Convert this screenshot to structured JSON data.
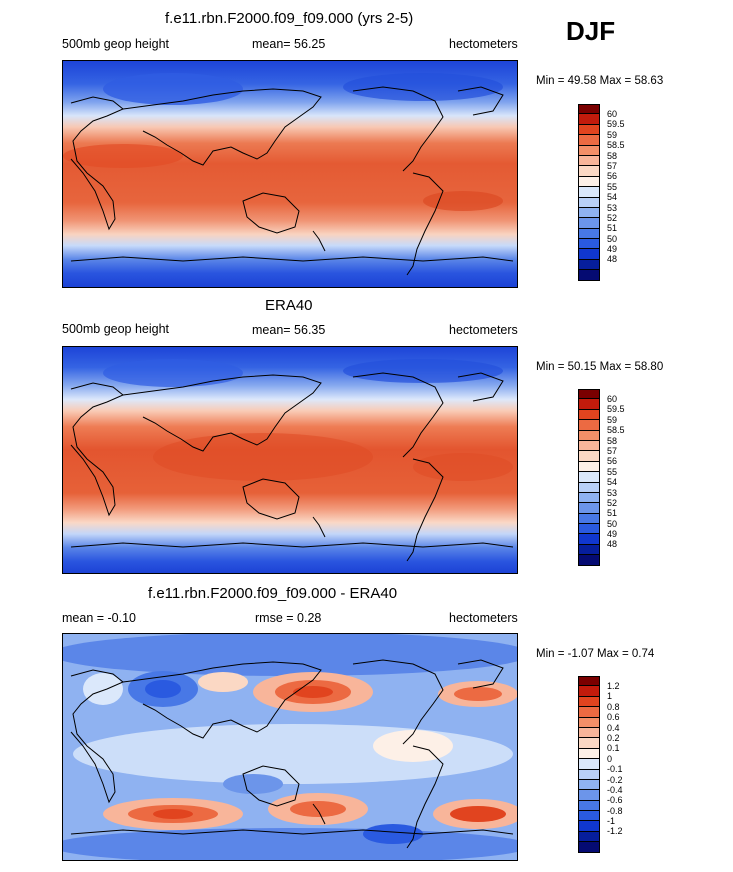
{
  "season": "DJF",
  "panels": [
    {
      "id": "model",
      "title": "f.e11.rbn.F2000.f09_f09.000 (yrs 2-5)",
      "left": "500mb geop height",
      "center": "mean=  56.25",
      "right": "hectometers",
      "minmax": "Min =  49.58 Max =  58.63",
      "colorbar": {
        "colors": [
          "#7a0000",
          "#c21b0c",
          "#e1441f",
          "#ec6a42",
          "#f38f68",
          "#f8b59a",
          "#fbd8c4",
          "#fdf0e7",
          "#dbe8fb",
          "#b9d0f7",
          "#8fb2f1",
          "#6c95ea",
          "#4878e6",
          "#2a5ae0",
          "#1037cf",
          "#061e9c",
          "#050b72"
        ],
        "labels": [
          "60",
          "59.5",
          "59",
          "58.5",
          "58",
          "57",
          "56",
          "55",
          "54",
          "53",
          "52",
          "51",
          "50",
          "49",
          "48"
        ]
      }
    },
    {
      "id": "obs",
      "title": "ERA40",
      "left": "500mb geop height",
      "center": "mean=  56.35",
      "right": "hectometers",
      "minmax": "Min =  50.15 Max =  58.80",
      "colorbar": {
        "colors": [
          "#7a0000",
          "#c21b0c",
          "#e1441f",
          "#ec6a42",
          "#f38f68",
          "#f8b59a",
          "#fbd8c4",
          "#fdf0e7",
          "#dbe8fb",
          "#b9d0f7",
          "#8fb2f1",
          "#6c95ea",
          "#4878e6",
          "#2a5ae0",
          "#1037cf",
          "#061e9c",
          "#050b72"
        ],
        "labels": [
          "60",
          "59.5",
          "59",
          "58.5",
          "58",
          "57",
          "56",
          "55",
          "54",
          "53",
          "52",
          "51",
          "50",
          "49",
          "48"
        ]
      }
    },
    {
      "id": "diff",
      "title": "f.e11.rbn.F2000.f09_f09.000 - ERA40",
      "left": "mean =  -0.10",
      "center": "rmse =   0.28",
      "right": "hectometers",
      "minmax": "Min =  -1.07 Max =   0.74",
      "colorbar": {
        "colors": [
          "#7a0000",
          "#c21b0c",
          "#e1441f",
          "#ec6a42",
          "#f38f68",
          "#f8b59a",
          "#fbd8c4",
          "#fdf0e7",
          "#dbe8fb",
          "#b9d0f7",
          "#8fb2f1",
          "#6c95ea",
          "#4878e6",
          "#2a5ae0",
          "#1037cf",
          "#061e9c",
          "#050b72"
        ],
        "labels": [
          "1.2",
          "1",
          "0.8",
          "0.6",
          "0.4",
          "0.2",
          "0.1",
          "0",
          "-0.1",
          "-0.2",
          "-0.4",
          "-0.6",
          "-0.8",
          "-1",
          "-1.2"
        ]
      }
    }
  ]
}
